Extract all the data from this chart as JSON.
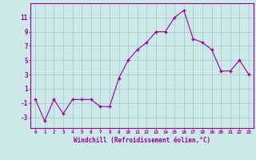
{
  "x": [
    0,
    1,
    2,
    3,
    4,
    5,
    6,
    7,
    8,
    9,
    10,
    11,
    12,
    13,
    14,
    15,
    16,
    17,
    18,
    19,
    20,
    21,
    22,
    23
  ],
  "y": [
    -0.5,
    -3.5,
    -0.5,
    -2.5,
    -0.5,
    -0.5,
    -0.5,
    -1.5,
    -1.5,
    2.5,
    5.0,
    6.5,
    7.5,
    9.0,
    9.0,
    11.0,
    12.0,
    8.0,
    7.5,
    6.5,
    3.5,
    3.5,
    5.0,
    3.0
  ],
  "line_color": "#990099",
  "marker": "+",
  "marker_color": "#990099",
  "bg_color": "#cce8e8",
  "grid_color": "#aacccc",
  "xlabel": "Windchill (Refroidissement éolien,°C)",
  "xlabel_color": "#990099",
  "xtick_labels": [
    "0",
    "1",
    "2",
    "3",
    "4",
    "5",
    "6",
    "7",
    "8",
    "9",
    "10",
    "11",
    "12",
    "13",
    "14",
    "15",
    "16",
    "17",
    "18",
    "19",
    "20",
    "21",
    "22",
    "23"
  ],
  "ytick_values": [
    -3,
    -1,
    1,
    3,
    5,
    7,
    9,
    11
  ],
  "xlim": [
    -0.5,
    23.5
  ],
  "ylim": [
    -4.5,
    13.0
  ],
  "tick_color": "#990099",
  "spine_color": "#990099"
}
